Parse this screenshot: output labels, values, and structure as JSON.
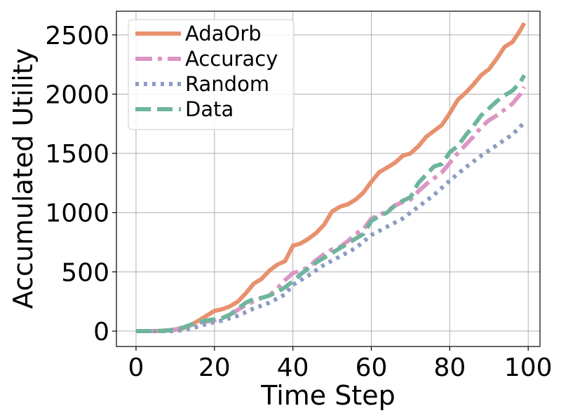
{
  "chart_data": {
    "type": "line",
    "title": "",
    "xlabel": "Time Step",
    "ylabel": "Accumulated Utility",
    "xlim": [
      -5,
      103
    ],
    "ylim": [
      -130,
      2700
    ],
    "xticks": [
      0,
      20,
      40,
      60,
      80,
      100
    ],
    "yticks": [
      0,
      500,
      1000,
      1500,
      2000,
      2500
    ],
    "grid": true,
    "legend_position": "top-left",
    "series": [
      {
        "name": "AdaOrb",
        "color": "#e8916f",
        "style": "solid",
        "x": [
          0,
          5,
          10,
          12,
          14,
          16,
          18,
          20,
          22,
          24,
          26,
          28,
          30,
          32,
          34,
          36,
          38,
          40,
          42,
          44,
          46,
          48,
          50,
          52,
          54,
          56,
          58,
          60,
          62,
          64,
          66,
          68,
          70,
          72,
          74,
          76,
          78,
          80,
          82,
          84,
          86,
          88,
          90,
          92,
          94,
          96,
          98,
          99
        ],
        "y": [
          0,
          0,
          10,
          25,
          50,
          90,
          130,
          170,
          185,
          210,
          250,
          320,
          400,
          440,
          510,
          560,
          590,
          720,
          740,
          780,
          830,
          900,
          1010,
          1050,
          1070,
          1110,
          1170,
          1260,
          1340,
          1380,
          1420,
          1480,
          1500,
          1560,
          1640,
          1690,
          1740,
          1840,
          1950,
          2010,
          2080,
          2160,
          2210,
          2300,
          2400,
          2440,
          2540,
          2600
        ]
      },
      {
        "name": "Accuracy",
        "color": "#dd96c4",
        "style": "dashdot",
        "x": [
          0,
          5,
          8,
          10,
          12,
          14,
          16,
          18,
          20,
          22,
          24,
          26,
          28,
          30,
          32,
          34,
          36,
          38,
          40,
          42,
          44,
          46,
          48,
          50,
          52,
          54,
          56,
          58,
          60,
          62,
          64,
          66,
          68,
          70,
          72,
          74,
          76,
          78,
          80,
          82,
          84,
          86,
          88,
          90,
          92,
          94,
          96,
          98,
          99
        ],
        "y": [
          0,
          0,
          5,
          15,
          30,
          50,
          70,
          80,
          90,
          110,
          140,
          180,
          220,
          250,
          280,
          300,
          360,
          430,
          490,
          510,
          540,
          600,
          650,
          690,
          710,
          760,
          820,
          860,
          950,
          980,
          1010,
          1060,
          1090,
          1110,
          1180,
          1240,
          1290,
          1340,
          1420,
          1500,
          1570,
          1640,
          1720,
          1780,
          1820,
          1870,
          1920,
          2000,
          2060
        ]
      },
      {
        "name": "Random",
        "color": "#8e9cc3",
        "style": "dotted",
        "x": [
          0,
          10,
          14,
          18,
          22,
          26,
          30,
          34,
          38,
          40,
          44,
          48,
          52,
          56,
          60,
          64,
          68,
          72,
          76,
          80,
          84,
          88,
          92,
          96,
          99
        ],
        "y": [
          0,
          0,
          20,
          60,
          90,
          130,
          190,
          240,
          310,
          390,
          470,
          560,
          630,
          700,
          810,
          880,
          950,
          1050,
          1150,
          1270,
          1380,
          1480,
          1570,
          1660,
          1760
        ]
      },
      {
        "name": "Data",
        "color": "#6fb59e",
        "style": "dashed",
        "x": [
          0,
          5,
          8,
          10,
          12,
          14,
          16,
          18,
          20,
          22,
          24,
          26,
          28,
          30,
          32,
          34,
          36,
          38,
          40,
          42,
          44,
          46,
          48,
          50,
          52,
          54,
          56,
          58,
          60,
          62,
          64,
          66,
          68,
          70,
          72,
          74,
          76,
          78,
          80,
          82,
          84,
          86,
          88,
          90,
          92,
          94,
          96,
          98,
          99
        ],
        "y": [
          0,
          0,
          5,
          10,
          30,
          55,
          80,
          90,
          100,
          110,
          140,
          190,
          240,
          270,
          280,
          300,
          330,
          370,
          420,
          480,
          530,
          580,
          620,
          660,
          700,
          740,
          780,
          820,
          930,
          970,
          1000,
          1060,
          1100,
          1130,
          1250,
          1320,
          1390,
          1410,
          1510,
          1560,
          1650,
          1730,
          1820,
          1880,
          1940,
          1990,
          2030,
          2100,
          2160
        ]
      }
    ]
  }
}
